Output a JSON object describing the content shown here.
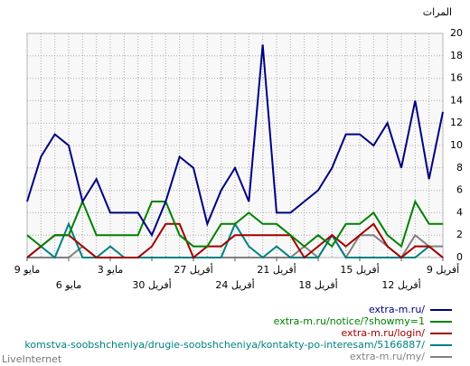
{
  "chart_data": {
    "type": "line",
    "y_label": "المرات",
    "footer": "LiveInternet",
    "categories": [
      "9 مايو",
      null,
      null,
      "6 مايو",
      null,
      null,
      "3 مايو",
      null,
      null,
      "30 أفريل",
      null,
      null,
      "27 أفريل",
      null,
      null,
      "24 أفريل",
      null,
      null,
      "21 أفريل",
      null,
      null,
      "18 أفريل",
      null,
      null,
      "15 أفريل",
      null,
      null,
      "12 أفريل",
      null,
      null,
      "9 أفريل"
    ],
    "ylim": [
      0,
      20
    ],
    "yticks": [
      0,
      2,
      4,
      6,
      8,
      10,
      12,
      14,
      16,
      18,
      20
    ],
    "grid": true,
    "series": [
      {
        "name": "extra-m.ru/",
        "color": "#000080",
        "values": [
          5,
          9,
          11,
          10,
          5,
          7,
          4,
          4,
          4,
          2,
          5,
          9,
          8,
          3,
          6,
          8,
          5,
          19,
          4,
          4,
          5,
          6,
          8,
          11,
          11,
          10,
          12,
          8,
          14,
          7,
          13
        ]
      },
      {
        "name": "extra-m.ru/notice/?showmy=1",
        "color": "#008000",
        "values": [
          2,
          1,
          2,
          2,
          5,
          2,
          2,
          2,
          2,
          5,
          5,
          2,
          1,
          1,
          3,
          3,
          4,
          3,
          3,
          2,
          1,
          2,
          1,
          3,
          3,
          4,
          2,
          1,
          5,
          3,
          3
        ]
      },
      {
        "name": "extra-m.ru/login/",
        "color": "#a00000",
        "values": [
          0,
          1,
          2,
          2,
          1,
          0,
          0,
          0,
          0,
          1,
          3,
          3,
          0,
          1,
          1,
          2,
          2,
          2,
          2,
          2,
          0,
          1,
          2,
          1,
          2,
          3,
          1,
          0,
          1,
          1,
          0
        ]
      },
      {
        "name": "komstva-soobshcheniya/drugie-soobshcheniya/kontakty-po-interesam/5166887/",
        "color": "#008080",
        "values": [
          0,
          1,
          0,
          3,
          0,
          0,
          1,
          0,
          0,
          0,
          0,
          0,
          0,
          0,
          0,
          3,
          1,
          0,
          1,
          0,
          0,
          0,
          2,
          0,
          0,
          0,
          0,
          0,
          0,
          1,
          0
        ]
      },
      {
        "name": "extra-m.ru/my/",
        "color": "#808080",
        "values": [
          0,
          0,
          0,
          0,
          1,
          0,
          0,
          0,
          0,
          0,
          0,
          0,
          0,
          0,
          0,
          0,
          0,
          0,
          0,
          0,
          1,
          0,
          2,
          0,
          2,
          2,
          1,
          0,
          2,
          1,
          1
        ]
      }
    ]
  }
}
